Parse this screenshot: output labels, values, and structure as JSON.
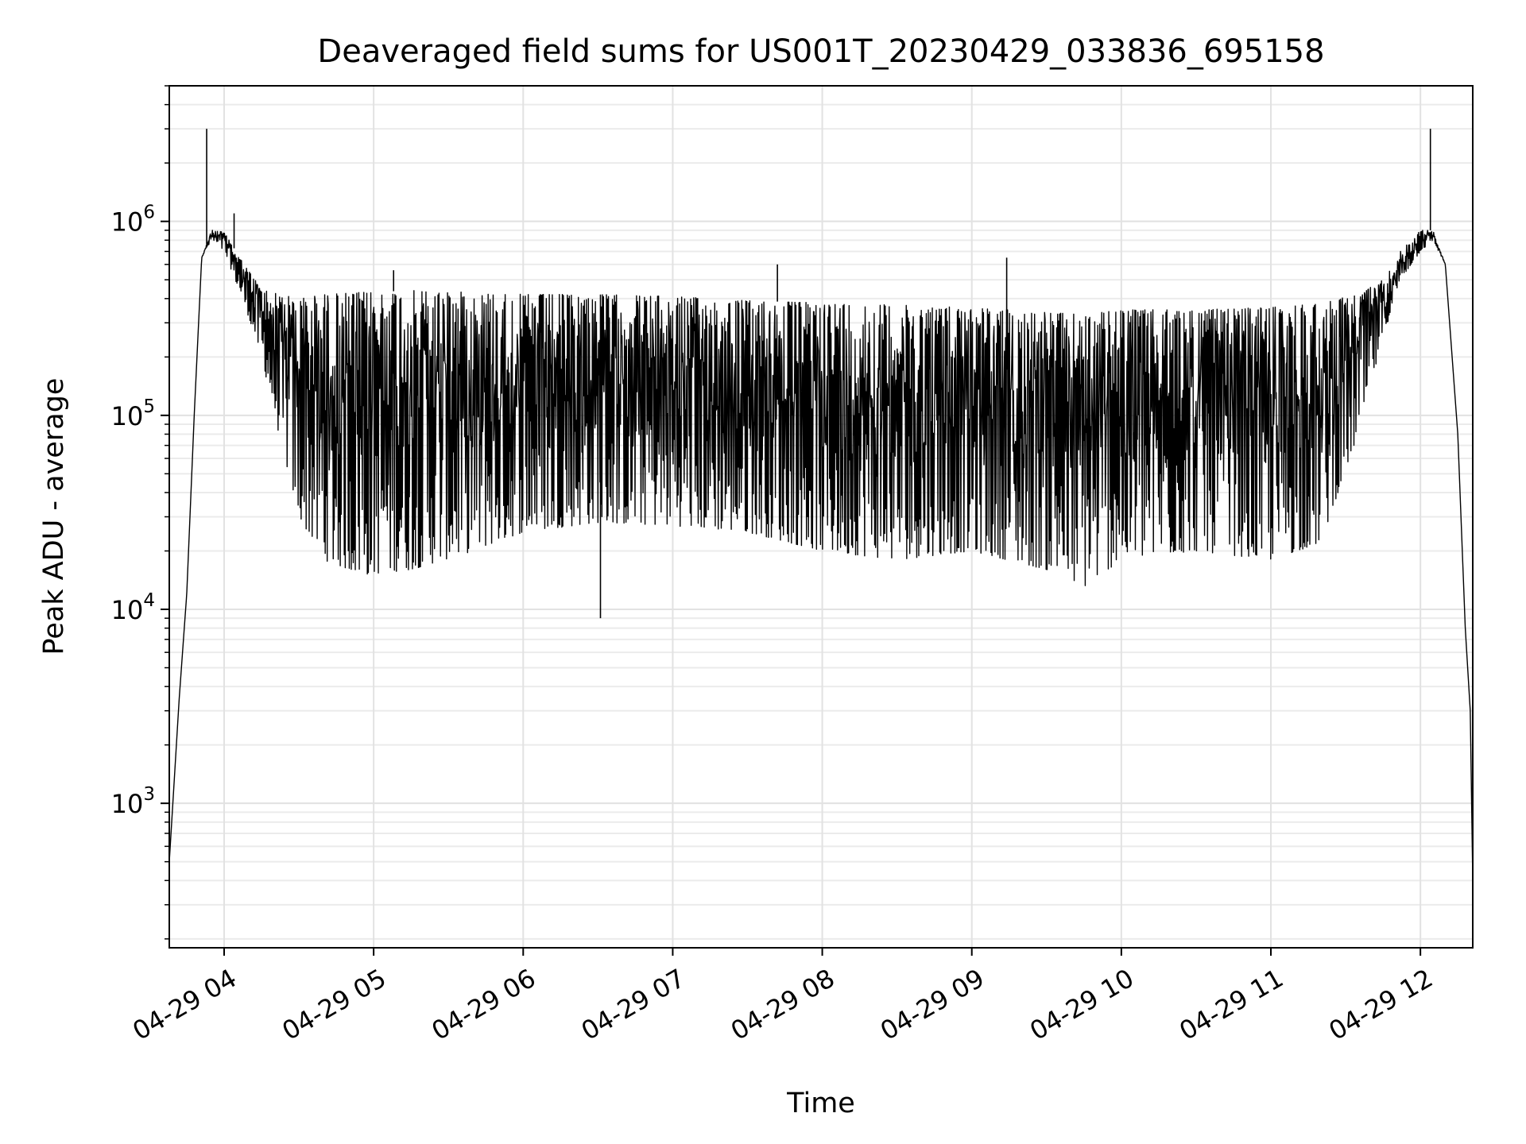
{
  "chart_data": {
    "type": "line",
    "title": "Deaveraged field sums for US001T_20230429_033836_695158",
    "xlabel": "Time",
    "ylabel": "Peak ADU - average",
    "yscale": "log",
    "ylim": [
      180,
      5000000
    ],
    "xlim": [
      "2023-04-29 03:38",
      "2023-04-29 12:21"
    ],
    "grid": true,
    "x_tick_labels": [
      "04-29 04",
      "04-29 05",
      "04-29 06",
      "04-29 07",
      "04-29 08",
      "04-29 09",
      "04-29 10",
      "04-29 11",
      "04-29 12"
    ],
    "x_ticks": [
      "2023-04-29 04:00",
      "2023-04-29 05:00",
      "2023-04-29 06:00",
      "2023-04-29 07:00",
      "2023-04-29 08:00",
      "2023-04-29 09:00",
      "2023-04-29 10:00",
      "2023-04-29 11:00",
      "2023-04-29 12:00"
    ],
    "y_ticks": [
      {
        "value": 1000,
        "base": "10",
        "exp": "3"
      },
      {
        "value": 10000,
        "base": "10",
        "exp": "4"
      },
      {
        "value": 100000,
        "base": "10",
        "exp": "5"
      },
      {
        "value": 1000000,
        "base": "10",
        "exp": "6"
      }
    ],
    "series": [
      {
        "color": "#000000",
        "envelope": {
          "x": [
            "2023-04-29 03:38",
            "2023-04-29 03:42",
            "2023-04-29 03:45",
            "2023-04-29 03:48",
            "2023-04-29 03:51",
            "2023-04-29 03:55",
            "2023-04-29 04:00",
            "2023-04-29 04:08",
            "2023-04-29 04:15",
            "2023-04-29 04:22",
            "2023-04-29 04:30",
            "2023-04-29 04:40",
            "2023-04-29 04:55",
            "2023-04-29 05:15",
            "2023-04-29 05:40",
            "2023-04-29 06:00",
            "2023-04-29 06:30",
            "2023-04-29 07:00",
            "2023-04-29 07:30",
            "2023-04-29 08:00",
            "2023-04-29 08:30",
            "2023-04-29 09:00",
            "2023-04-29 09:30",
            "2023-04-29 09:45",
            "2023-04-29 10:00",
            "2023-04-29 10:30",
            "2023-04-29 11:00",
            "2023-04-29 11:20",
            "2023-04-29 11:35",
            "2023-04-29 11:45",
            "2023-04-29 11:52",
            "2023-04-29 12:00",
            "2023-04-29 12:05",
            "2023-04-29 12:10",
            "2023-04-29 12:15",
            "2023-04-29 12:18",
            "2023-04-29 12:20",
            "2023-04-29 12:21"
          ],
          "upper": [
            500,
            3500,
            12000,
            100000,
            650000,
            900000,
            880000,
            600000,
            450000,
            420000,
            400000,
            420000,
            430000,
            440000,
            430000,
            420000,
            420000,
            410000,
            390000,
            380000,
            370000,
            360000,
            340000,
            330000,
            350000,
            350000,
            360000,
            380000,
            420000,
            500000,
            700000,
            900000,
            900000,
            600000,
            80000,
            8000,
            3000,
            400
          ],
          "lower": [
            500,
            3500,
            12000,
            100000,
            650000,
            800000,
            700000,
            380000,
            200000,
            80000,
            30000,
            18000,
            15000,
            16000,
            20000,
            25000,
            28000,
            27000,
            25000,
            20000,
            18000,
            20000,
            16000,
            13000,
            18000,
            20000,
            18000,
            22000,
            80000,
            250000,
            500000,
            700000,
            800000,
            600000,
            80000,
            8000,
            3000,
            400
          ]
        },
        "spikes": [
          {
            "x": "2023-04-29 03:53",
            "y": 3000000
          },
          {
            "x": "2023-04-29 04:04",
            "y": 1100000
          },
          {
            "x": "2023-04-29 05:08",
            "y": 560000
          },
          {
            "x": "2023-04-29 06:31",
            "y": 9000
          },
          {
            "x": "2023-04-29 07:42",
            "y": 600000
          },
          {
            "x": "2023-04-29 09:14",
            "y": 650000
          },
          {
            "x": "2023-04-29 12:04",
            "y": 3000000
          }
        ]
      }
    ]
  }
}
